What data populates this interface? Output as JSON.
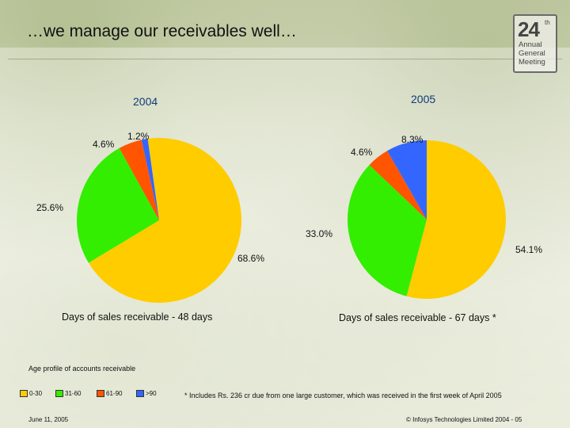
{
  "slide": {
    "title": "…we manage our receivables well…",
    "badge": {
      "number": "24",
      "superscript": "th",
      "lines": [
        "Annual",
        "General",
        "Meeting"
      ]
    },
    "footnote": "* Includes Rs. 236 cr due from one large customer, which was received in the first week of April 2005",
    "footer_left": "June 11, 2005",
    "footer_right": "© Infosys Technologies Limited 2004 - 05"
  },
  "chart_data": [
    {
      "type": "pie",
      "title": "2004",
      "caption": "Days of sales receivable - 48 days",
      "categories": [
        "0-30",
        "31-60",
        "61-90",
        ">90"
      ],
      "values": [
        68.6,
        25.6,
        4.6,
        1.2
      ],
      "labels": [
        "68.6%",
        "25.6%",
        "4.6%",
        "1.2%"
      ]
    },
    {
      "type": "pie",
      "title": "2005",
      "caption": "Days of sales receivable - 67 days *",
      "categories": [
        "0-30",
        "31-60",
        "61-90",
        ">90"
      ],
      "values": [
        54.1,
        33.0,
        4.6,
        8.3
      ],
      "labels": [
        "54.1%",
        "33.0%",
        "4.6%",
        "8.3%"
      ]
    }
  ],
  "legend": {
    "title": "Age profile of accounts receivable",
    "items": [
      {
        "label": "0-30",
        "color": "#FFCC00"
      },
      {
        "label": "31-60",
        "color": "#33EE00"
      },
      {
        "label": "61-90",
        "color": "#FF5500"
      },
      {
        "label": ">90",
        "color": "#3366FF"
      }
    ]
  }
}
